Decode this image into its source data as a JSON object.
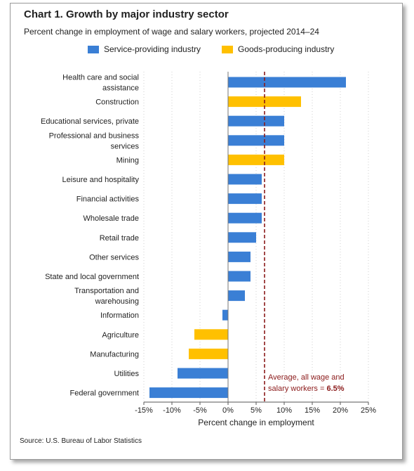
{
  "title": "Chart 1. Growth by major industry sector",
  "subtitle": "Percent change in employment of wage and salary workers, projected 2014–24",
  "source": "Source: U.S. Bureau of Labor Statistics",
  "colors": {
    "service": "#3a7fd5",
    "goods": "#ffc000",
    "average_line": "#8b1a1a"
  },
  "chart_data": {
    "type": "bar",
    "orientation": "horizontal",
    "xlabel": "Percent change in employment",
    "xlim": [
      -15,
      25
    ],
    "xticks": [
      "-15%",
      "-10%",
      "-5%",
      "0%",
      "5%",
      "10%",
      "15%",
      "20%",
      "25%"
    ],
    "grid": "vertical dotted",
    "legend_position": "top",
    "legend": [
      {
        "key": "service",
        "label": "Service-providing industry"
      },
      {
        "key": "goods",
        "label": "Goods-producing industry"
      }
    ],
    "categories": [
      {
        "label": [
          "Health care and social",
          "assistance"
        ],
        "value": 21,
        "type": "service"
      },
      {
        "label": [
          "Construction"
        ],
        "value": 13,
        "type": "goods"
      },
      {
        "label": [
          "Educational services, private"
        ],
        "value": 10,
        "type": "service"
      },
      {
        "label": [
          "Professional and business",
          "services"
        ],
        "value": 10,
        "type": "service"
      },
      {
        "label": [
          "Mining"
        ],
        "value": 10,
        "type": "goods"
      },
      {
        "label": [
          "Leisure and hospitality"
        ],
        "value": 6,
        "type": "service"
      },
      {
        "label": [
          "Financial activities"
        ],
        "value": 6,
        "type": "service"
      },
      {
        "label": [
          "Wholesale trade"
        ],
        "value": 6,
        "type": "service"
      },
      {
        "label": [
          "Retail trade"
        ],
        "value": 5,
        "type": "service"
      },
      {
        "label": [
          "Other services"
        ],
        "value": 4,
        "type": "service"
      },
      {
        "label": [
          "State and local government"
        ],
        "value": 4,
        "type": "service"
      },
      {
        "label": [
          "Transportation and",
          "warehousing"
        ],
        "value": 3,
        "type": "service"
      },
      {
        "label": [
          "Information"
        ],
        "value": -1,
        "type": "service"
      },
      {
        "label": [
          "Agriculture"
        ],
        "value": -6,
        "type": "goods"
      },
      {
        "label": [
          "Manufacturing"
        ],
        "value": -7,
        "type": "goods"
      },
      {
        "label": [
          "Utilities"
        ],
        "value": -9,
        "type": "service"
      },
      {
        "label": [
          "Federal government"
        ],
        "value": -14,
        "type": "service"
      }
    ],
    "reference_line": {
      "value": 6.5,
      "label_line1": "Average, all wage and",
      "label_line2_prefix": "salary workers = ",
      "label_value": "6.5%"
    }
  }
}
